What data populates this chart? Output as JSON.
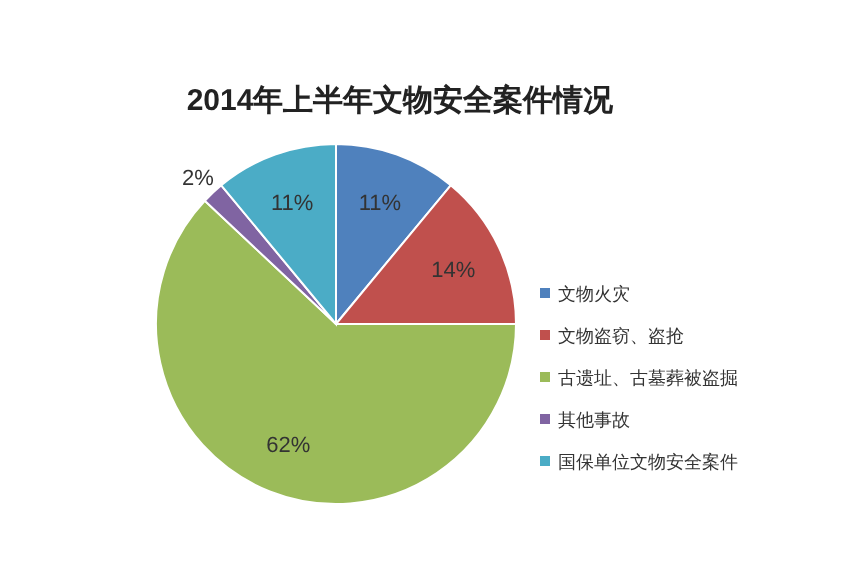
{
  "chart_data": {
    "type": "pie",
    "title": "2014年上半年文物安全案件情况",
    "categories": [
      "文物火灾",
      "文物盗窃、盗抢",
      "古遗址、古墓葬被盗掘",
      "其他事故",
      "国保单位文物安全案件"
    ],
    "values": [
      11,
      14,
      62,
      2,
      11
    ],
    "colors": [
      "#4f81bd",
      "#c0504d",
      "#9bbb59",
      "#8064a2",
      "#4bacc6"
    ],
    "value_labels": [
      "11%",
      "14%",
      "62%",
      "2%",
      "11%"
    ],
    "legend": "right"
  }
}
